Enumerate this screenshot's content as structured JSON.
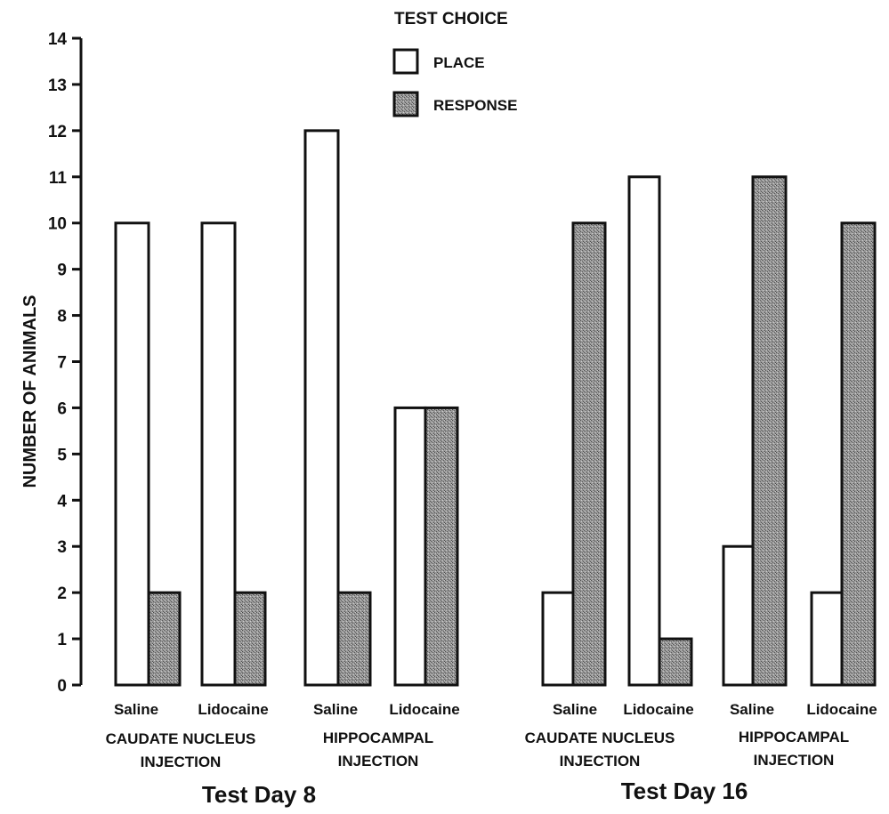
{
  "colors": {
    "place_fill": "#ffffff",
    "response_fill": "#8f8f8f",
    "stroke": "#111111"
  },
  "legend": {
    "title": "TEST CHOICE",
    "place_label": "PLACE",
    "response_label": "RESPONSE"
  },
  "chart_data": {
    "type": "bar",
    "ylabel": "NUMBER OF ANIMALS",
    "ylim": [
      0,
      14
    ],
    "yticks": [
      0,
      1,
      2,
      3,
      4,
      5,
      6,
      7,
      8,
      9,
      10,
      11,
      12,
      13,
      14
    ],
    "legend_position": "top-center",
    "series_names": [
      "PLACE",
      "RESPONSE"
    ],
    "panels": [
      {
        "label": "Test Day 8",
        "groups": [
          {
            "label_line1": "CAUDATE NUCLEUS",
            "label_line2": "INJECTION",
            "conditions": [
              {
                "label": "Saline",
                "place": 10,
                "response": 2
              },
              {
                "label": "Lidocaine",
                "place": 10,
                "response": 2
              }
            ]
          },
          {
            "label_line1": "HIPPOCAMPAL",
            "label_line2": "INJECTION",
            "conditions": [
              {
                "label": "Saline",
                "place": 12,
                "response": 2
              },
              {
                "label": "Lidocaine",
                "place": 6,
                "response": 6
              }
            ]
          }
        ]
      },
      {
        "label": "Test Day 16",
        "groups": [
          {
            "label_line1": "CAUDATE NUCLEUS",
            "label_line2": "INJECTION",
            "conditions": [
              {
                "label": "Saline",
                "place": 2,
                "response": 10
              },
              {
                "label": "Lidocaine",
                "place": 11,
                "response": 1
              }
            ]
          },
          {
            "label_line1": "HIPPOCAMPAL",
            "label_line2": "INJECTION",
            "conditions": [
              {
                "label": "Saline",
                "place": 3,
                "response": 11
              },
              {
                "label": "Lidocaine",
                "place": 2,
                "response": 10
              }
            ]
          }
        ]
      }
    ]
  }
}
